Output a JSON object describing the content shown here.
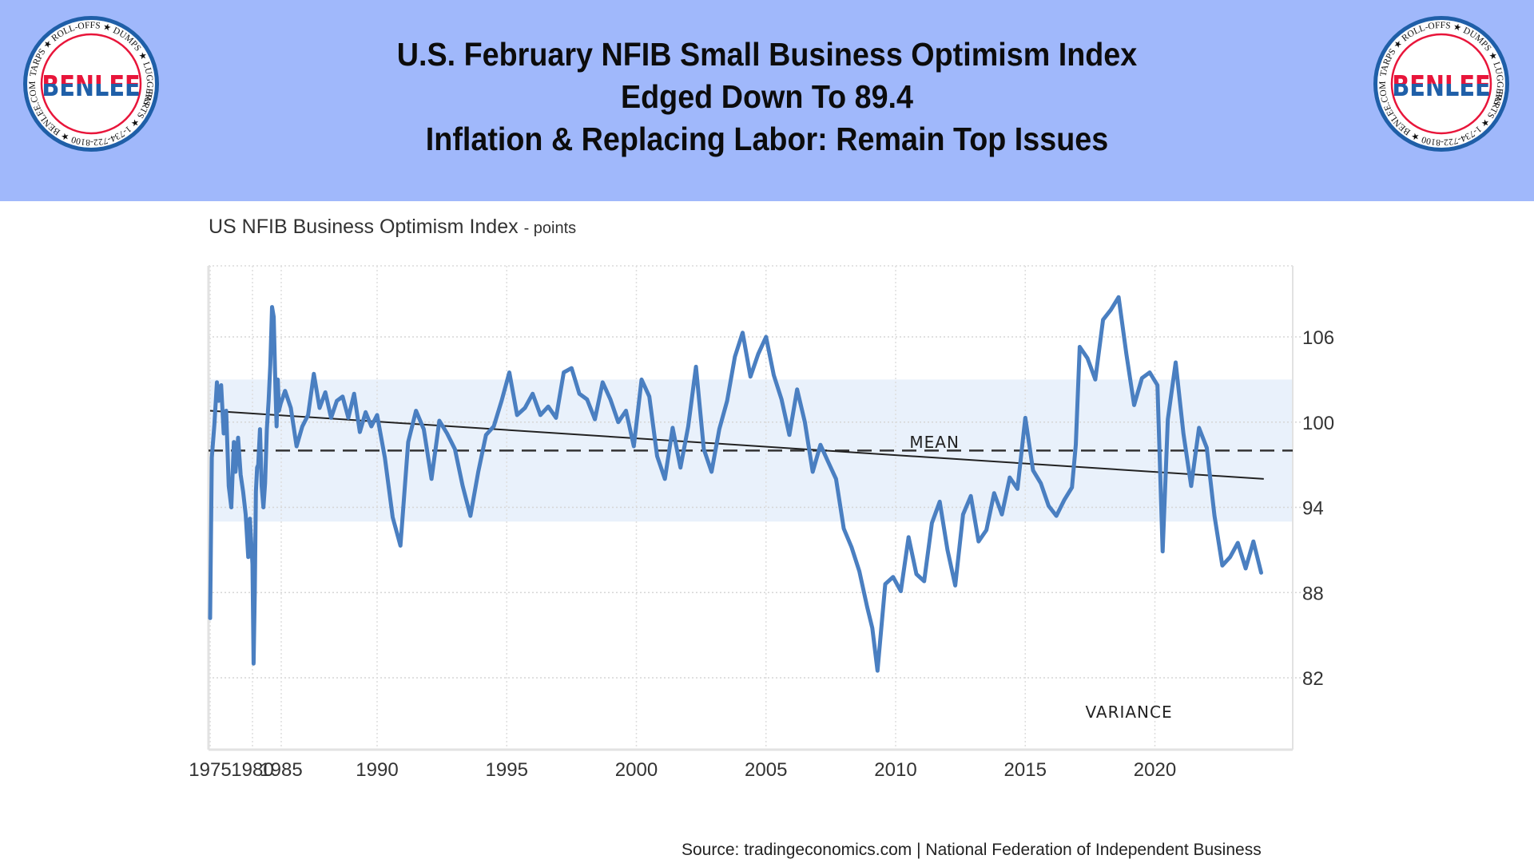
{
  "header": {
    "headline_lines": [
      "U.S. February NFIB Small Business Optimism Index",
      "Edged Down To 89.4",
      "Inflation & Replacing Labor: Remain Top Issues"
    ],
    "logo": {
      "name": "BENLEE",
      "ring_text_top": "TARPS ★ ROLL-OFFS ★ DUMPS ★ LUGGERS",
      "ring_text_bottom": "PARTS ★ 1-734-722-8100 ★ BENLEE.COM"
    },
    "colors": {
      "banner": "#a0b8fb",
      "logo_red": "#e8153a",
      "logo_blue": "#1f5fa8"
    }
  },
  "source": "Source: tradingeconomics.com | National Federation of Independent Business",
  "chart_data": {
    "type": "line",
    "title": "US NFIB Business Optimism Index",
    "title_unit": "- points",
    "xlabel": "",
    "ylabel": "",
    "y_axis_side": "right",
    "ylim": [
      77,
      111
    ],
    "xlim": [
      1975,
      2024.2
    ],
    "y_ticks": [
      82,
      88,
      94,
      100,
      106
    ],
    "x_ticks": [
      1975,
      1980,
      1985,
      1990,
      1995,
      2000,
      2005,
      2010,
      2015,
      2020
    ],
    "x_tick_labels": [
      "1975",
      "1980",
      "1985",
      "1990",
      "1995",
      "2000",
      "2005",
      "2010",
      "2015",
      "2020"
    ],
    "grid": true,
    "colors": {
      "series": "#4a7fc1",
      "band": "#e9f1fb",
      "mean": "#333333",
      "trend": "#222222"
    },
    "annotations": [
      {
        "text": "MEAN",
        "x": 2011.5,
        "y": 98.2
      },
      {
        "text": "VARIANCE",
        "x": 2019,
        "y": 79.2
      }
    ],
    "mean_line": {
      "name": "Mean",
      "value": 98
    },
    "variance_band": {
      "name": "Variance",
      "lower": 93,
      "upper": 103
    },
    "trend_line": {
      "name": "Trend",
      "start": [
        1975,
        100.8
      ],
      "end": [
        2024.2,
        96
      ]
    },
    "series": [
      {
        "name": "US NFIB Business Optimism Index",
        "x": [
          1975.0,
          1975.2,
          1975.5,
          1975.8,
          1976.0,
          1976.3,
          1976.6,
          1976.9,
          1977.2,
          1977.5,
          1977.8,
          1978.0,
          1978.3,
          1978.6,
          1978.9,
          1979.2,
          1979.5,
          1979.7,
          1980.0,
          1980.2,
          1980.4,
          1980.6,
          1980.8,
          1981.0,
          1981.3,
          1981.6,
          1981.9,
          1982.2,
          1982.5,
          1982.8,
          1983.1,
          1983.4,
          1983.7,
          1984.0,
          1984.2,
          1984.4,
          1984.6,
          1984.9,
          1985.2,
          1985.5,
          1985.8,
          1986.1,
          1986.4,
          1986.7,
          1987.0,
          1987.3,
          1987.6,
          1987.9,
          1988.2,
          1988.5,
          1988.8,
          1989.1,
          1989.4,
          1989.7,
          1990.0,
          1990.3,
          1990.6,
          1990.9,
          1991.2,
          1991.5,
          1991.8,
          1992.1,
          1992.4,
          1992.7,
          1993.0,
          1993.3,
          1993.6,
          1993.9,
          1994.2,
          1994.5,
          1994.8,
          1995.1,
          1995.4,
          1995.7,
          1996.0,
          1996.3,
          1996.6,
          1996.9,
          1997.2,
          1997.5,
          1997.8,
          1998.1,
          1998.4,
          1998.7,
          1999.0,
          1999.3,
          1999.6,
          1999.9,
          2000.2,
          2000.5,
          2000.8,
          2001.1,
          2001.4,
          2001.7,
          2002.0,
          2002.3,
          2002.6,
          2002.9,
          2003.2,
          2003.5,
          2003.8,
          2004.1,
          2004.4,
          2004.7,
          2005.0,
          2005.3,
          2005.6,
          2005.9,
          2006.2,
          2006.5,
          2006.8,
          2007.1,
          2007.4,
          2007.7,
          2008.0,
          2008.3,
          2008.6,
          2008.9,
          2009.1,
          2009.3,
          2009.6,
          2009.9,
          2010.2,
          2010.5,
          2010.8,
          2011.1,
          2011.4,
          2011.7,
          2012.0,
          2012.3,
          2012.6,
          2012.9,
          2013.2,
          2013.5,
          2013.8,
          2014.1,
          2014.4,
          2014.7,
          2015.0,
          2015.3,
          2015.6,
          2015.9,
          2016.2,
          2016.5,
          2016.8,
          2016.95,
          2017.1,
          2017.4,
          2017.7,
          2018.0,
          2018.3,
          2018.6,
          2018.9,
          2019.2,
          2019.5,
          2019.8,
          2020.1,
          2020.3,
          2020.5,
          2020.8,
          2021.1,
          2021.4,
          2021.7,
          2022.0,
          2022.3,
          2022.6,
          2022.9,
          2023.2,
          2023.5,
          2023.8,
          2024.1
        ],
        "values": [
          86.2,
          97.5,
          99.8,
          102.8,
          101.5,
          102.6,
          99.2,
          100.8,
          95.5,
          94.0,
          98.6,
          96.5,
          98.9,
          96.3,
          95.1,
          93.5,
          90.5,
          93.2,
          90.0,
          83.0,
          88.0,
          95.1,
          96.8,
          97.0,
          99.5,
          95.5,
          94.0,
          95.7,
          99.5,
          101.5,
          104.0,
          108.1,
          107.4,
          102.3,
          99.7,
          103.0,
          100.8,
          101.3,
          102.2,
          101.0,
          98.3,
          99.7,
          100.5,
          103.4,
          101.0,
          102.1,
          100.3,
          101.5,
          101.8,
          100.3,
          102.0,
          99.3,
          100.7,
          99.7,
          100.5,
          97.5,
          93.3,
          91.3,
          98.6,
          100.8,
          99.5,
          96.0,
          100.1,
          99.2,
          98.1,
          95.5,
          93.4,
          96.5,
          99.1,
          99.7,
          101.5,
          103.5,
          100.5,
          101.0,
          102.0,
          100.5,
          101.1,
          100.3,
          103.5,
          103.8,
          102.0,
          101.6,
          100.2,
          102.8,
          101.6,
          100.0,
          100.8,
          98.3,
          103.0,
          101.8,
          97.6,
          96.0,
          99.6,
          96.8,
          99.7,
          103.9,
          98.1,
          96.5,
          99.5,
          101.5,
          104.6,
          106.3,
          103.2,
          104.8,
          106.0,
          103.3,
          101.6,
          99.1,
          102.3,
          100.0,
          96.5,
          98.4,
          97.2,
          96.0,
          92.5,
          91.2,
          89.5,
          87.0,
          85.5,
          82.5,
          88.6,
          89.1,
          88.1,
          91.9,
          89.3,
          88.8,
          92.9,
          94.4,
          91.0,
          88.5,
          93.5,
          94.8,
          91.6,
          92.4,
          95.0,
          93.5,
          96.1,
          95.3,
          100.3,
          96.6,
          95.7,
          94.1,
          93.4,
          94.5,
          95.4,
          98.4,
          105.3,
          104.5,
          103.0,
          107.2,
          107.9,
          108.8,
          104.8,
          101.2,
          103.1,
          103.5,
          102.6,
          90.9,
          100.2,
          104.2,
          99.2,
          95.5,
          99.6,
          98.2,
          93.4,
          89.9,
          90.5,
          91.5,
          89.7,
          91.6,
          89.4
        ]
      }
    ]
  }
}
